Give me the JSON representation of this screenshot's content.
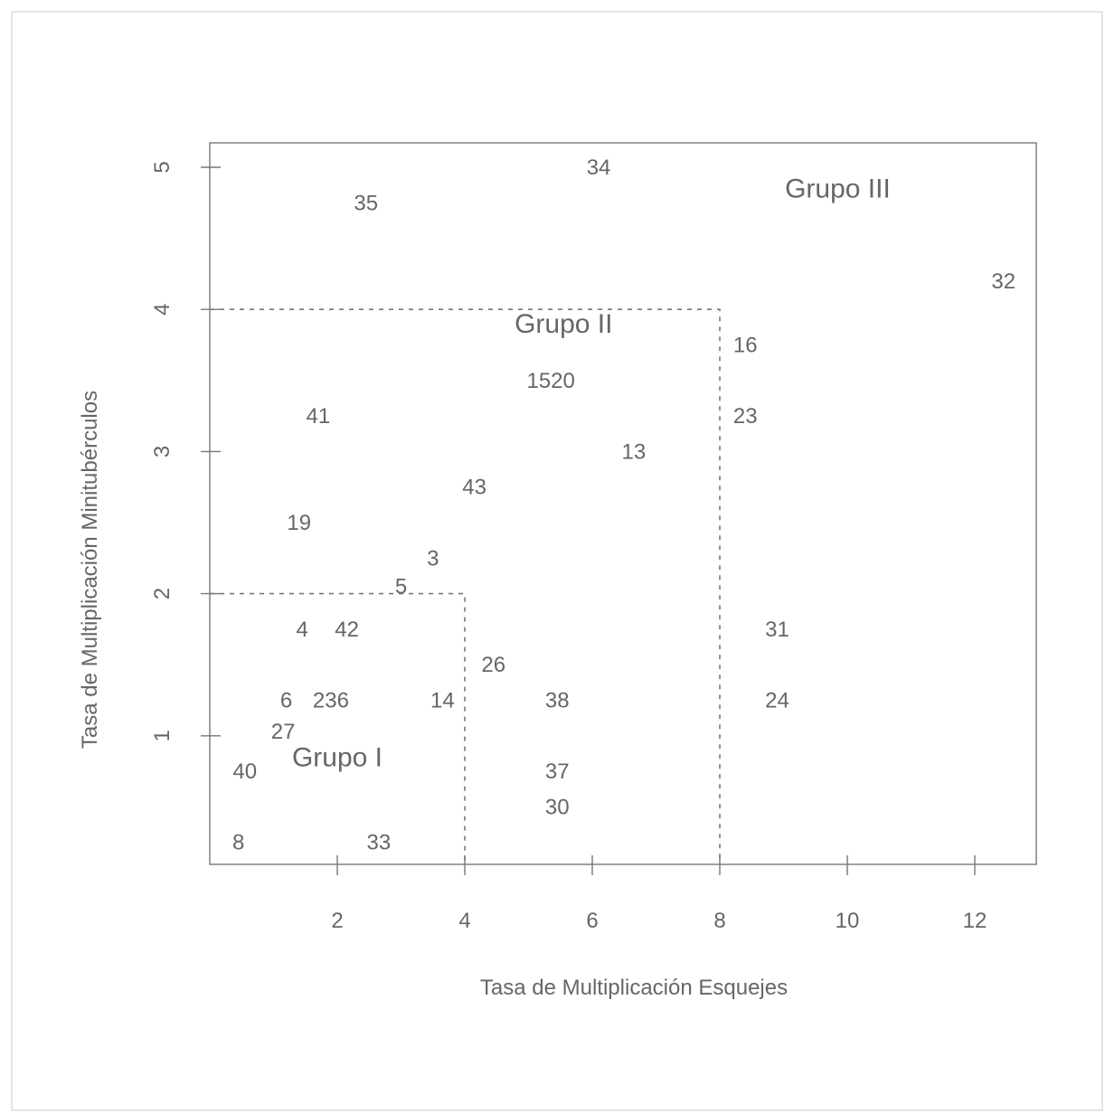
{
  "chart_data": {
    "type": "scatter",
    "title": "",
    "xlabel": "Tasa de Multiplicación Esquejes",
    "ylabel": "Tasa de Multiplicación Minitubérculos",
    "xlim": [
      0,
      13
    ],
    "ylim": [
      0,
      5.2
    ],
    "xticks": [
      2,
      4,
      6,
      8,
      10,
      12
    ],
    "yticks": [
      1,
      2,
      3,
      4,
      5
    ],
    "grid": false,
    "point_labels": [
      {
        "label": "34",
        "x": 6.1,
        "y": 5.0
      },
      {
        "label": "35",
        "x": 2.45,
        "y": 4.75
      },
      {
        "label": "32",
        "x": 12.45,
        "y": 4.2
      },
      {
        "label": "16",
        "x": 8.4,
        "y": 3.75
      },
      {
        "label": "1520",
        "x": 5.35,
        "y": 3.5
      },
      {
        "label": "41",
        "x": 1.7,
        "y": 3.25
      },
      {
        "label": "23",
        "x": 8.4,
        "y": 3.25
      },
      {
        "label": "13",
        "x": 6.65,
        "y": 3.0
      },
      {
        "label": "43",
        "x": 4.15,
        "y": 2.75
      },
      {
        "label": "19",
        "x": 1.4,
        "y": 2.5
      },
      {
        "label": "3",
        "x": 3.5,
        "y": 2.25
      },
      {
        "label": "5",
        "x": 3.0,
        "y": 2.05
      },
      {
        "label": "4",
        "x": 1.45,
        "y": 1.75
      },
      {
        "label": "42",
        "x": 2.15,
        "y": 1.75
      },
      {
        "label": "31",
        "x": 8.9,
        "y": 1.75
      },
      {
        "label": "26",
        "x": 4.45,
        "y": 1.5
      },
      {
        "label": "6",
        "x": 1.2,
        "y": 1.25
      },
      {
        "label": "236",
        "x": 1.9,
        "y": 1.25
      },
      {
        "label": "14",
        "x": 3.65,
        "y": 1.25
      },
      {
        "label": "38",
        "x": 5.45,
        "y": 1.25
      },
      {
        "label": "24",
        "x": 8.9,
        "y": 1.25
      },
      {
        "label": "27",
        "x": 1.15,
        "y": 1.03
      },
      {
        "label": "40",
        "x": 0.55,
        "y": 0.75
      },
      {
        "label": "37",
        "x": 5.45,
        "y": 0.75
      },
      {
        "label": "30",
        "x": 5.45,
        "y": 0.5
      },
      {
        "label": "8",
        "x": 0.45,
        "y": 0.25
      },
      {
        "label": "33",
        "x": 2.65,
        "y": 0.25
      }
    ],
    "group_labels": [
      {
        "label": "Grupo I",
        "x": 2.0,
        "y": 0.85
      },
      {
        "label": "Grupo II",
        "x": 5.55,
        "y": 3.9
      },
      {
        "label": "Grupo III",
        "x": 9.85,
        "y": 4.85
      }
    ],
    "region_bounds": [
      {
        "x": 4,
        "y": 2
      },
      {
        "x": 8,
        "y": 4
      }
    ]
  }
}
